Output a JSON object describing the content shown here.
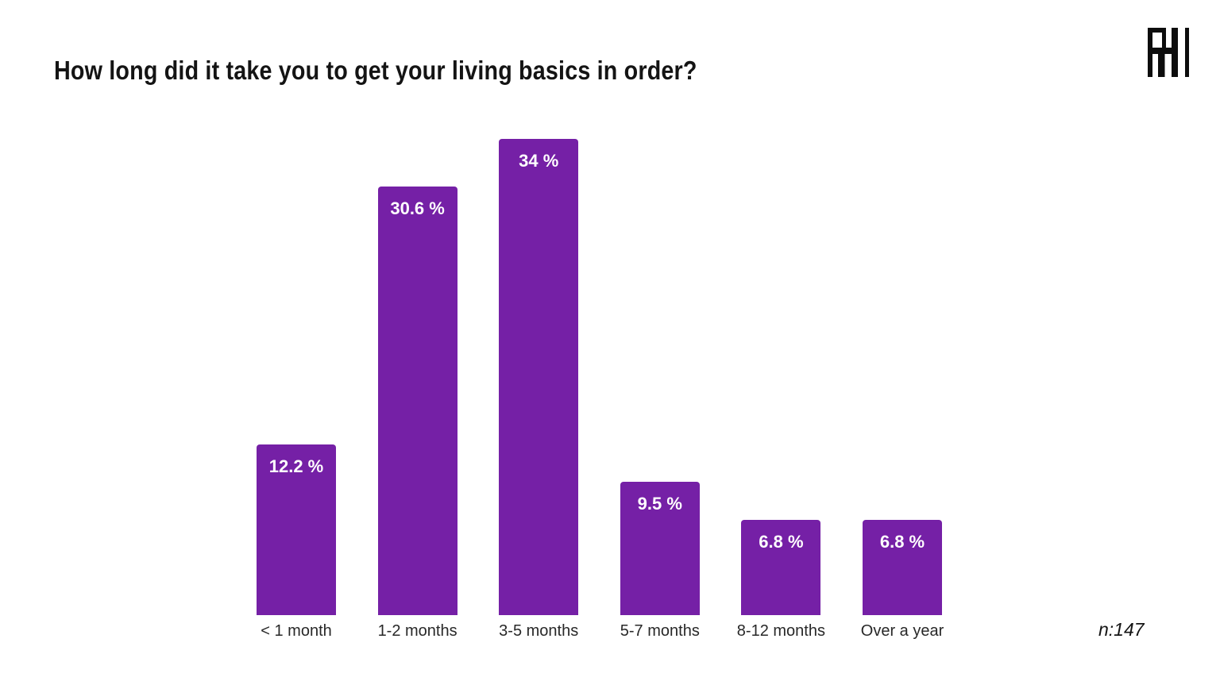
{
  "title": "How long did it take you to get your living basics in order?",
  "logo": {
    "name": "h-monogram-logo",
    "color": "#0d0d0d"
  },
  "footer": {
    "sample_size": "n:147"
  },
  "chart_data": {
    "type": "bar",
    "title": "How long did it take you to get your living basics in order?",
    "categories": [
      "< 1 month",
      "1-2 months",
      "3-5 months",
      "5-7 months",
      "8-12 months",
      "Over a year"
    ],
    "values": [
      12.2,
      30.6,
      34,
      9.5,
      6.8,
      6.8
    ],
    "value_labels": [
      "12.2 %",
      "30.6 %",
      "34 %",
      "9.5 %",
      "6.8 %",
      "6.8 %"
    ],
    "xlabel": "",
    "ylabel": "",
    "ylim": [
      0,
      34
    ],
    "grid": false,
    "legend": false,
    "bar_color": "#7520a6",
    "value_label_color": "#ffffff",
    "annotation": "n:147"
  }
}
